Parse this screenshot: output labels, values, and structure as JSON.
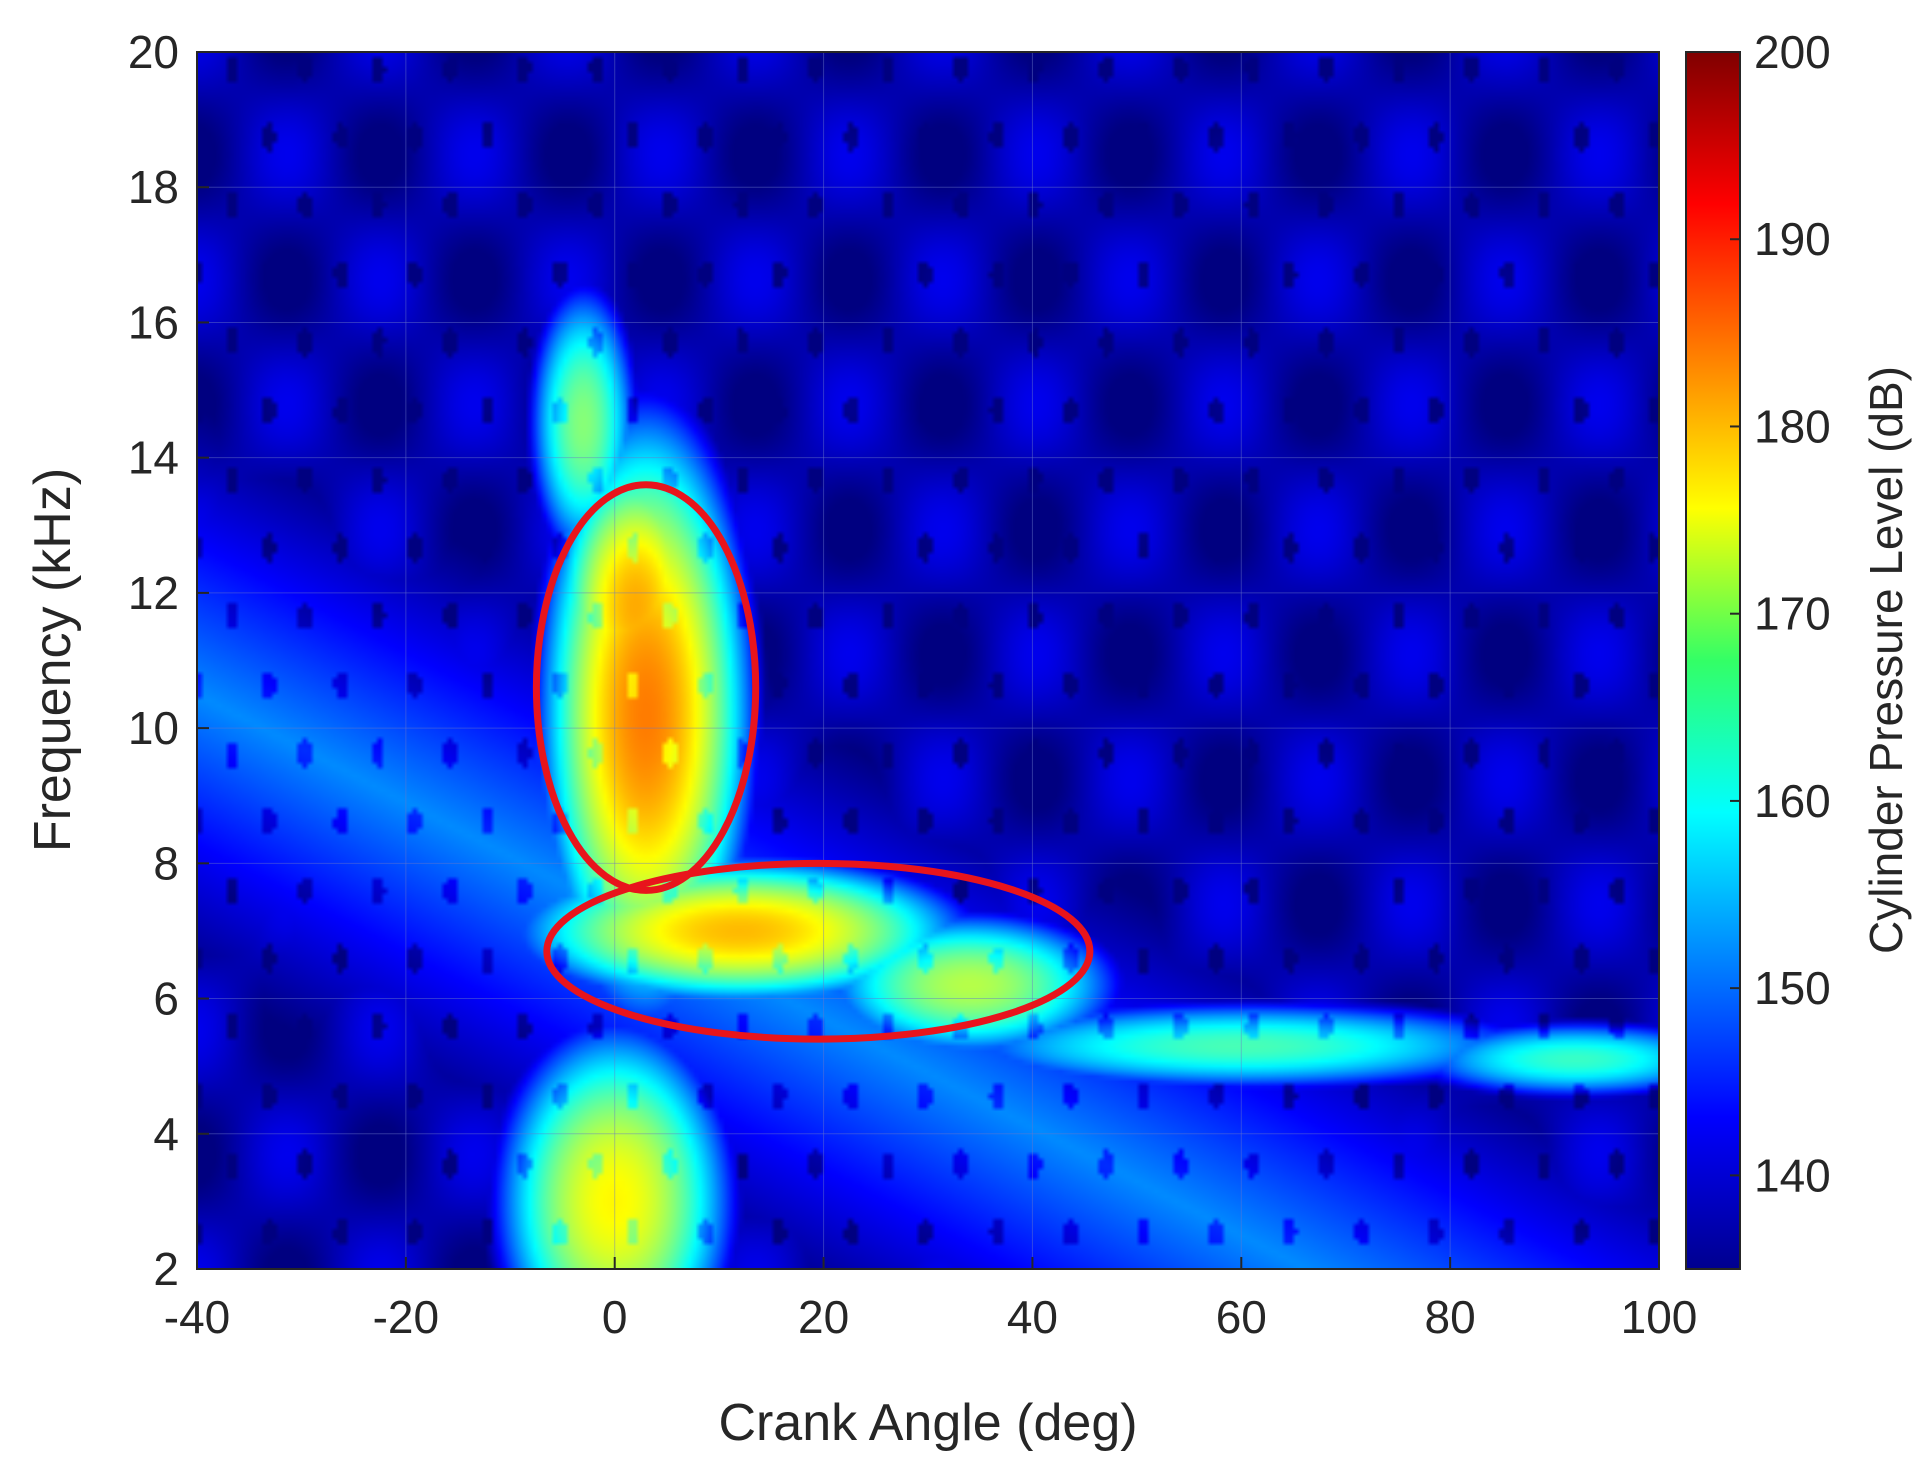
{
  "chart_data": {
    "type": "heatmap",
    "title": "",
    "xlabel": "Crank Angle (deg)",
    "ylabel": "Frequency (kHz)",
    "xlim": [
      -40,
      100
    ],
    "ylim": [
      2,
      20
    ],
    "xticks": [
      -40,
      -20,
      0,
      20,
      40,
      60,
      80,
      100
    ],
    "yticks": [
      2,
      4,
      6,
      8,
      10,
      12,
      14,
      16,
      18,
      20
    ],
    "grid": true,
    "colorbar": {
      "label": "Cylinder Pressure Level (dB)",
      "range": [
        135,
        200
      ],
      "ticks": [
        140,
        150,
        160,
        170,
        180,
        190,
        200
      ],
      "colormap": "jet"
    },
    "sources": [
      {
        "x": 0,
        "y": 3,
        "level": 176,
        "sx": 6,
        "sy": 1.4
      },
      {
        "x": 3,
        "y": 10.2,
        "level": 184,
        "sx": 5,
        "sy": 2.2
      },
      {
        "x": 2,
        "y": 11.8,
        "level": 181,
        "sx": 4,
        "sy": 1.2
      },
      {
        "x": 12,
        "y": 7.0,
        "level": 180,
        "sx": 11,
        "sy": 0.55
      },
      {
        "x": 34,
        "y": 6.2,
        "level": 171,
        "sx": 8,
        "sy": 0.6
      },
      {
        "x": -3,
        "y": 14.5,
        "level": 168,
        "sx": 3,
        "sy": 1.2
      },
      {
        "x": 60,
        "y": 5.3,
        "level": 164,
        "sx": 18,
        "sy": 0.4
      },
      {
        "x": 92,
        "y": 5.1,
        "level": 163,
        "sx": 10,
        "sy": 0.35
      }
    ],
    "annotations": [
      {
        "shape": "ellipse",
        "cx": 3,
        "cy": 10.6,
        "rx": 10.5,
        "ry": 3.0,
        "color": "#e8141c"
      },
      {
        "shape": "ellipse",
        "cx": 19.5,
        "cy": 6.7,
        "rx": 26,
        "ry": 1.3,
        "color": "#e8141c"
      }
    ]
  }
}
